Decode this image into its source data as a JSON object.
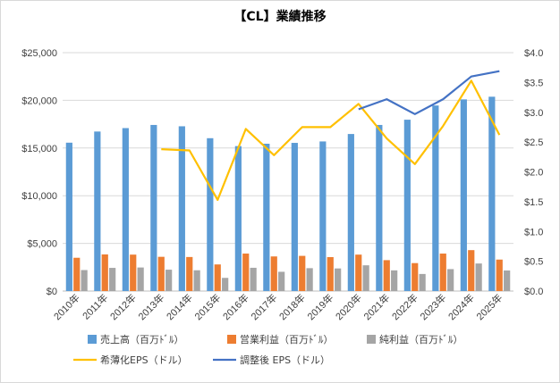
{
  "chart_data": {
    "type": "bar",
    "title": "【CL】業績推移",
    "categories": [
      "2010年",
      "2011年",
      "2012年",
      "2013年",
      "2014年",
      "2015年",
      "2016年",
      "2017年",
      "2018年",
      "2019年",
      "2020年",
      "2021年",
      "2022年",
      "2023年",
      "2024年",
      "2025年"
    ],
    "left_axis": {
      "min": 0,
      "max": 25000,
      "step": 5000,
      "ticks": [
        "$0",
        "$5,000",
        "$10,000",
        "$15,000",
        "$20,000",
        "$25,000"
      ]
    },
    "right_axis": {
      "min": 0,
      "max": 4.0,
      "step": 0.5,
      "ticks": [
        "$0.0",
        "$0.5",
        "$1.0",
        "$1.5",
        "$2.0",
        "$2.5",
        "$3.0",
        "$3.5",
        "$4.0"
      ]
    },
    "grid": true,
    "legend_position": "bottom",
    "series": [
      {
        "name": "売上高（百万ﾄﾞﾙ）",
        "kind": "bar",
        "axis": "left",
        "color": "#5b9bd5",
        "values": [
          15560,
          16730,
          17090,
          17420,
          17280,
          16030,
          15200,
          15450,
          15540,
          15690,
          16470,
          17420,
          17970,
          19460,
          20100,
          20380
        ]
      },
      {
        "name": "営業利益（百万ﾄﾞﾙ）",
        "kind": "bar",
        "axis": "left",
        "color": "#ed7d31",
        "values": [
          3490,
          3840,
          3820,
          3590,
          3570,
          2790,
          3930,
          3630,
          3690,
          3560,
          3820,
          3240,
          2930,
          3930,
          4290,
          3300
        ]
      },
      {
        "name": "純利益（百万ﾄﾞﾙ）",
        "kind": "bar",
        "axis": "left",
        "color": "#a5a5a5",
        "values": [
          2200,
          2430,
          2470,
          2240,
          2180,
          1380,
          2440,
          2020,
          2400,
          2370,
          2700,
          2170,
          1790,
          2300,
          2890,
          2160
        ]
      },
      {
        "name": "希薄化EPS（ドル）",
        "kind": "line",
        "axis": "right",
        "color": "#ffc000",
        "values": [
          null,
          null,
          null,
          2.38,
          2.36,
          1.53,
          2.72,
          2.28,
          2.75,
          2.75,
          3.14,
          2.56,
          2.13,
          2.77,
          3.53,
          2.62
        ]
      },
      {
        "name": "調整後 EPS（ドル）",
        "kind": "line",
        "axis": "right",
        "color": "#4472c4",
        "values": [
          null,
          null,
          null,
          null,
          null,
          null,
          null,
          null,
          null,
          null,
          3.05,
          3.22,
          2.97,
          3.22,
          3.6,
          3.69
        ]
      }
    ]
  }
}
